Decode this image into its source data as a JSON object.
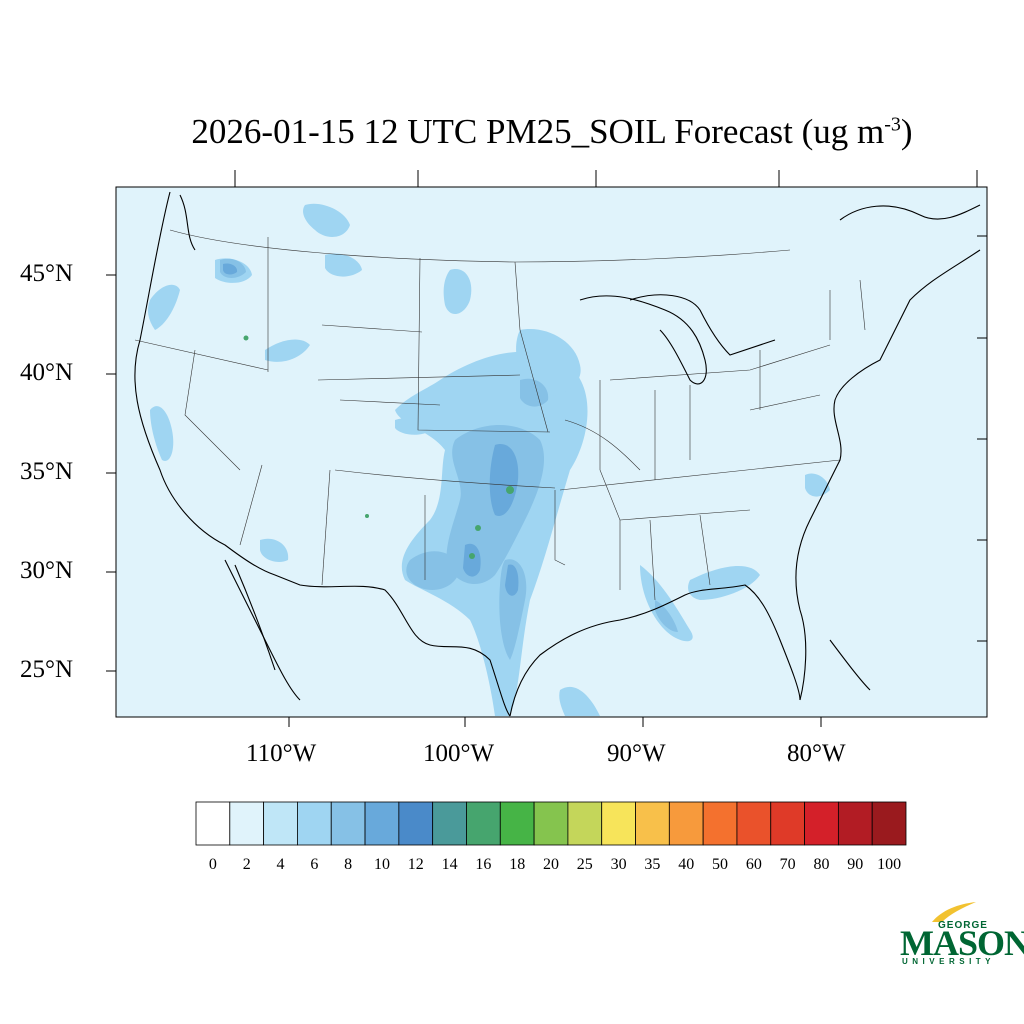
{
  "title": {
    "main": "2026-01-15 12 UTC PM25_SOIL Forecast (ug m",
    "exponent": "-3",
    "close": ")"
  },
  "lat_labels": [
    "45°N",
    "40°N",
    "35°N",
    "30°N",
    "25°N"
  ],
  "lon_labels": [
    "110°W",
    "100°W",
    "90°W",
    "80°W"
  ],
  "colorbar": {
    "labels": [
      "0",
      "2",
      "4",
      "6",
      "8",
      "10",
      "12",
      "14",
      "16",
      "18",
      "20",
      "25",
      "30",
      "35",
      "40",
      "50",
      "60",
      "70",
      "80",
      "90",
      "100"
    ],
    "colors": [
      "#ffffff",
      "#e0f3fb",
      "#bfe6f7",
      "#9fd5f2",
      "#86c1e6",
      "#68a9db",
      "#4a8ac9",
      "#4a9a9a",
      "#46a56e",
      "#46b446",
      "#85c44e",
      "#c4d65a",
      "#f7e45a",
      "#f8c04a",
      "#f79a3c",
      "#f4712e",
      "#ea522b",
      "#df3a28",
      "#d42029",
      "#b21c24",
      "#9a1a1e"
    ]
  },
  "map": {
    "background_color": "#e0f3fb",
    "plume_colors": [
      "#bfe6f7",
      "#9fd5f2",
      "#86c1e6",
      "#68a9db",
      "#46a56e",
      "#85c44e"
    ]
  },
  "logo": {
    "george": "GEORGE",
    "mason": "MASON",
    "university": "UNIVERSITY",
    "color": "#006633",
    "accent": "#f2c230"
  }
}
